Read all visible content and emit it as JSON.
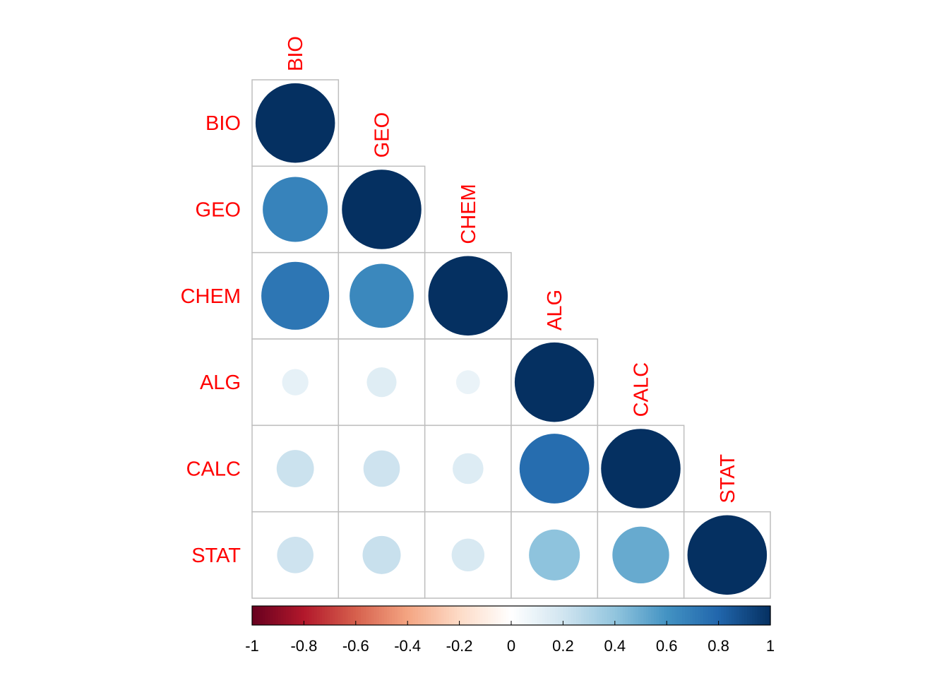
{
  "chart_data": {
    "type": "heatmap",
    "subtype": "correlation-circle-lower",
    "variables": [
      "BIO",
      "GEO",
      "CHEM",
      "ALG",
      "CALC",
      "STAT"
    ],
    "matrix": [
      [
        1.0,
        null,
        null,
        null,
        null,
        null
      ],
      [
        0.67,
        1.0,
        null,
        null,
        null,
        null
      ],
      [
        0.73,
        0.65,
        1.0,
        null,
        null,
        null
      ],
      [
        0.11,
        0.14,
        0.09,
        1.0,
        null,
        null
      ],
      [
        0.22,
        0.21,
        0.15,
        0.77,
        1.0,
        null
      ],
      [
        0.21,
        0.23,
        0.17,
        0.41,
        0.51,
        1.0
      ]
    ],
    "colorbar": {
      "range": [
        -1,
        1
      ],
      "ticks": [
        "-1",
        "-0.8",
        "-0.6",
        "-0.4",
        "-0.2",
        "0",
        "0.2",
        "0.4",
        "0.6",
        "0.8",
        "1"
      ],
      "colors": [
        "#67001F",
        "#B2182B",
        "#D6604D",
        "#F4A582",
        "#FDDBC7",
        "#FFFFFF",
        "#D1E5F0",
        "#92C5DE",
        "#4393C3",
        "#2166AC",
        "#053061"
      ]
    },
    "label_color": "#FF0000",
    "grid_color": "#BEBEBE"
  }
}
